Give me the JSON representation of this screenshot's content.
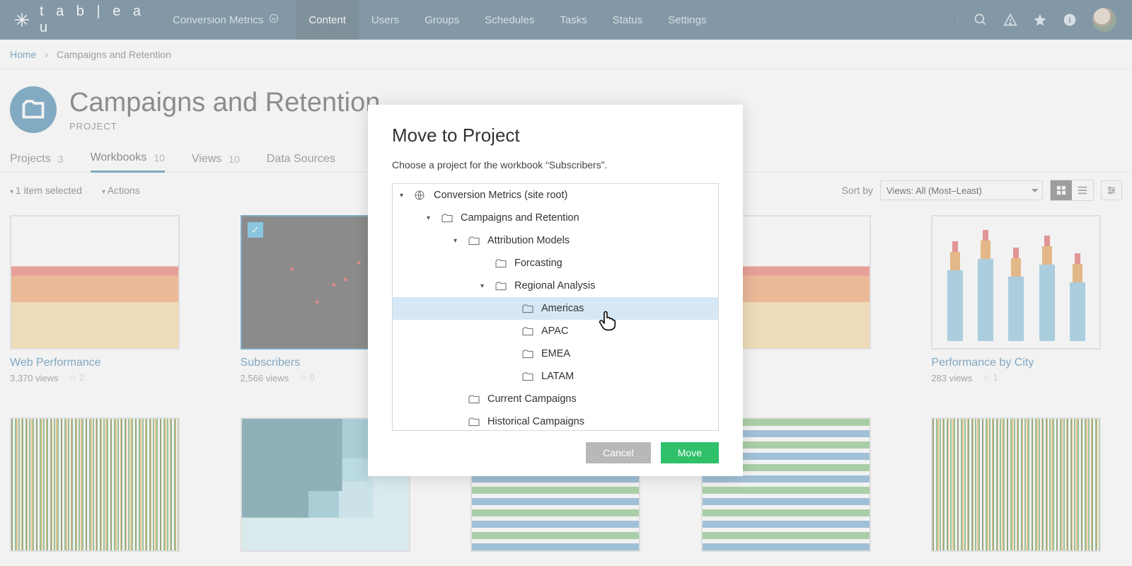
{
  "topbar": {
    "brand": "t a b | e a u",
    "site_label": "Conversion Metrics",
    "tabs": [
      "Content",
      "Users",
      "Groups",
      "Schedules",
      "Tasks",
      "Status",
      "Settings"
    ],
    "active_tab_index": 0
  },
  "breadcrumb": {
    "home": "Home",
    "current": "Campaigns and Retention"
  },
  "page": {
    "title": "Campaigns and Retention",
    "subtitle": "PROJECT"
  },
  "ptabs": [
    {
      "label": "Projects",
      "count": "3",
      "active": false
    },
    {
      "label": "Workbooks",
      "count": "10",
      "active": true
    },
    {
      "label": "Views",
      "count": "10",
      "active": false
    },
    {
      "label": "Data Sources",
      "count": "",
      "active": false
    }
  ],
  "toolbar": {
    "selected_text": "1 item selected",
    "actions_text": "Actions",
    "sortby_label": "Sort by",
    "sort_value": "Views: All (Most–Least)"
  },
  "workbooks": [
    {
      "title": "Web Performance",
      "views": "3,370 views",
      "favs": "2",
      "selected": false,
      "thumb": "area"
    },
    {
      "title": "Subscribers",
      "views": "2,566 views",
      "favs": "0",
      "selected": true,
      "thumb": "map"
    },
    {
      "title": "",
      "views": "",
      "favs": "",
      "selected": false,
      "thumb": "bars"
    },
    {
      "title": "",
      "views": "",
      "favs": "",
      "selected": false,
      "thumb": "area2"
    },
    {
      "title": "Performance by City",
      "views": "283 views",
      "favs": "1",
      "selected": false,
      "thumb": "box"
    },
    {
      "title": "",
      "views": "",
      "favs": "",
      "selected": false,
      "thumb": "noise"
    },
    {
      "title": "",
      "views": "",
      "favs": "",
      "selected": false,
      "thumb": "treemap"
    },
    {
      "title": "",
      "views": "",
      "favs": "",
      "selected": false,
      "thumb": "hbars"
    },
    {
      "title": "",
      "views": "",
      "favs": "",
      "selected": false,
      "thumb": "hbars"
    },
    {
      "title": "",
      "views": "",
      "favs": "",
      "selected": false,
      "thumb": "noise"
    }
  ],
  "dialog": {
    "title": "Move to Project",
    "message": "Choose a project for the workbook “Subscribers”.",
    "cancel": "Cancel",
    "move": "Move",
    "tree": [
      {
        "indent": 0,
        "exp": "down",
        "icon": "globe",
        "label": "Conversion Metrics (site root)"
      },
      {
        "indent": 1,
        "exp": "down",
        "icon": "folder",
        "label": "Campaigns and Retention"
      },
      {
        "indent": 2,
        "exp": "down",
        "icon": "folder",
        "label": "Attribution Models"
      },
      {
        "indent": 3,
        "exp": "",
        "icon": "folder",
        "label": "Forcasting"
      },
      {
        "indent": 3,
        "exp": "down",
        "icon": "folder",
        "label": "Regional Analysis"
      },
      {
        "indent": 4,
        "exp": "",
        "icon": "folder",
        "label": "Americas",
        "hover": true
      },
      {
        "indent": 4,
        "exp": "",
        "icon": "folder",
        "label": "APAC"
      },
      {
        "indent": 4,
        "exp": "",
        "icon": "folder",
        "label": "EMEA"
      },
      {
        "indent": 4,
        "exp": "",
        "icon": "folder",
        "label": "LATAM"
      },
      {
        "indent": 2,
        "exp": "",
        "icon": "folder",
        "label": "Current Campaigns"
      },
      {
        "indent": 2,
        "exp": "",
        "icon": "folder",
        "label": "Historical Campaigns"
      }
    ]
  },
  "colors": {
    "nav_bg": "#1f4b66",
    "nav_active": "#163a4f",
    "accent": "#1f6f9e",
    "link": "#1a699e",
    "move_btn": "#2fc06a",
    "cancel_btn": "#b8b8b8",
    "tree_hover": "#d6e8f5"
  }
}
